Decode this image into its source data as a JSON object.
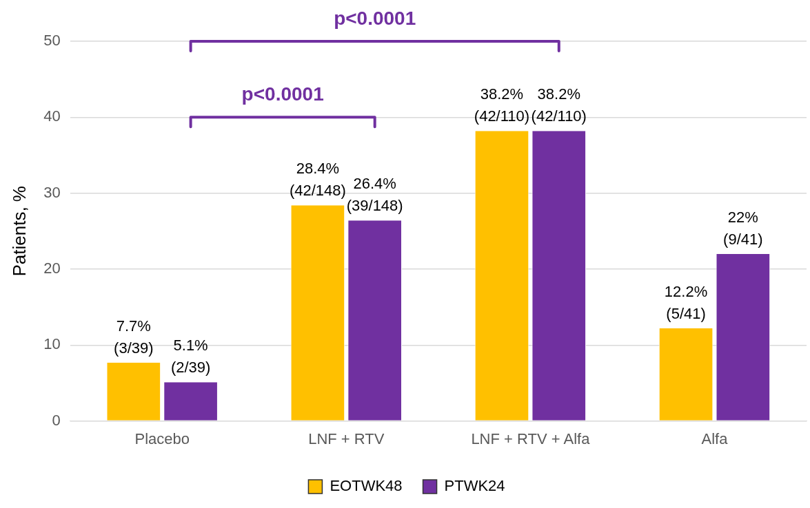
{
  "chart_data": {
    "type": "bar",
    "ylabel": "Patients, %",
    "categories": [
      "Placebo",
      "LNF + RTV",
      "LNF + RTV + Alfa",
      "Alfa"
    ],
    "series": [
      {
        "name": "EOTWK48",
        "color": "#ffc000",
        "values": [
          7.7,
          28.4,
          38.2,
          12.2
        ],
        "value_labels": [
          "7.7% (3/39)",
          "28.4% (42/148)",
          "38.2% (42/110)",
          "12.2% (5/41)"
        ]
      },
      {
        "name": "PTWK24",
        "color": "#7030a0",
        "values": [
          5.1,
          26.4,
          38.2,
          22
        ],
        "value_labels": [
          "5.1% (2/39)",
          "26.4% (39/148)",
          "38.2% (42/110)",
          "22% (9/41)"
        ]
      }
    ],
    "ylim": [
      0,
      50
    ],
    "yticks": [
      0,
      10,
      20,
      30,
      40,
      50
    ],
    "grid": "y",
    "legend": "bottom",
    "annotations": [
      "p<0.0001",
      "p<0.0001"
    ]
  }
}
